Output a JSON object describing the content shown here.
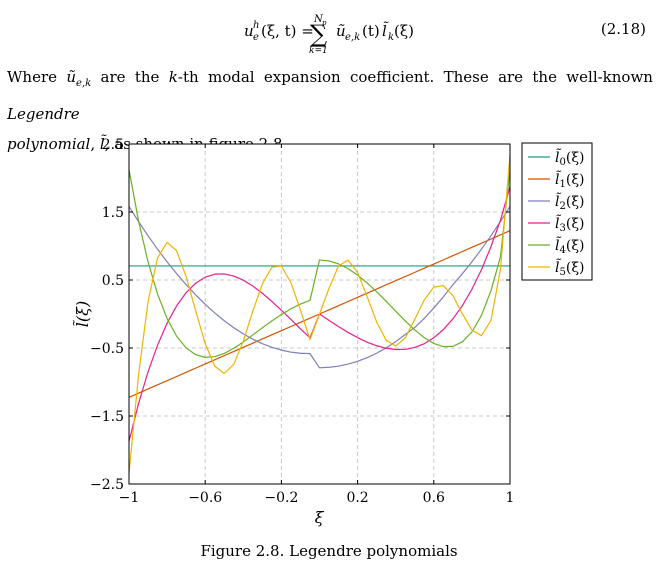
{
  "equation": {
    "lhs": "u",
    "lhs_sup": "h",
    "lhs_sub": "e",
    "lhs_args": "(ξ, t) =",
    "sum_symbol": "∑",
    "sum_upper": "N",
    "sum_upper_sub": "p",
    "sum_lower": "k=1",
    "rhs_coef": "ũ",
    "rhs_coef_sub": "e,k",
    "rhs_coef_args": "(t)",
    "rhs_basis": "l̃",
    "rhs_basis_sub": "k",
    "rhs_basis_args": "(ξ)",
    "number": "(2.18)"
  },
  "paragraph": {
    "w1": "Where",
    "coef": "ũ",
    "coef_sub": "e,k",
    "w2": "are the",
    "k": "k",
    "w3": "-th modal expansion coefficient.  These are the well-known",
    "emph1": "Legendre",
    "emph2": "polynomial",
    "w4": ",",
    "sym": "l̃",
    "w5": ", as shown in figure 2.8."
  },
  "caption": "Figure 2.8. Legendre polynomials",
  "chart_data": {
    "type": "line",
    "xlabel": "ξ",
    "ylabel": "l̃(ξ)",
    "xlim": [
      -1,
      1
    ],
    "ylim": [
      -2.5,
      2.5
    ],
    "xticks": [
      -1,
      -0.6,
      -0.2,
      0.2,
      0.6,
      1
    ],
    "xtick_labels": [
      "−1",
      "−0.6",
      "−0.2",
      "0.2",
      "0.6",
      "1"
    ],
    "yticks": [
      -2.5,
      -1.5,
      -0.5,
      0.5,
      1.5,
      2.5
    ],
    "ytick_labels": [
      "−2.5",
      "−1.5",
      "−0.5",
      "0.5",
      "1.5",
      "2.5"
    ],
    "grid": true,
    "legend_position": "outside-right-top",
    "x": [
      -1,
      -0.95,
      -0.9,
      -0.85,
      -0.8,
      -0.75,
      -0.7,
      -0.65,
      -0.6,
      -0.55,
      -0.5,
      -0.45,
      -0.4,
      -0.35,
      -0.3,
      -0.25,
      -0.2,
      -0.15,
      -0.1,
      -0.05,
      0,
      0.05,
      0.1,
      0.15,
      0.2,
      0.25,
      0.3,
      0.35,
      0.4,
      0.45,
      0.5,
      0.55,
      0.6,
      0.65,
      0.7,
      0.75,
      0.8,
      0.85,
      0.9,
      0.95,
      1
    ],
    "series": [
      {
        "name_base": "l̃",
        "name_sub": "0",
        "name_args": "(ξ)",
        "color": "#16a085",
        "values": [
          0.707,
          0.707,
          0.707,
          0.707,
          0.707,
          0.707,
          0.707,
          0.707,
          0.707,
          0.707,
          0.707,
          0.707,
          0.707,
          0.707,
          0.707,
          0.707,
          0.707,
          0.707,
          0.707,
          0.707,
          0.707,
          0.707,
          0.707,
          0.707,
          0.707,
          0.707,
          0.707,
          0.707,
          0.707,
          0.707,
          0.707,
          0.707,
          0.707,
          0.707,
          0.707,
          0.707,
          0.707,
          0.707,
          0.707,
          0.707,
          0.707
        ]
      },
      {
        "name_base": "l̃",
        "name_sub": "1",
        "name_args": "(ξ)",
        "color": "#d35400",
        "values": [
          -1.225,
          -1.164,
          -1.102,
          -1.041,
          -0.98,
          -0.919,
          -0.857,
          -0.796,
          -0.735,
          -0.674,
          -0.612,
          -0.551,
          -0.49,
          -0.429,
          -0.367,
          -0.306,
          -0.245,
          -0.184,
          -0.122,
          -0.061,
          0.0,
          0.061,
          0.122,
          0.184,
          0.245,
          0.306,
          0.367,
          0.429,
          0.49,
          0.551,
          0.612,
          0.674,
          0.735,
          0.796,
          0.857,
          0.919,
          0.98,
          1.041,
          1.102,
          1.164,
          1.225
        ]
      },
      {
        "name_base": "l̃",
        "name_sub": "2",
        "name_args": "(ξ)",
        "color": "#7f7fba",
        "values": [
          1.581,
          1.36,
          1.15,
          0.953,
          0.767,
          0.593,
          0.431,
          0.281,
          0.142,
          0.016,
          -0.099,
          -0.202,
          -0.292,
          -0.371,
          -0.437,
          -0.49,
          -0.531,
          -0.561,
          -0.577,
          -0.583,
          -0.791,
          -0.783,
          -0.767,
          -0.736,
          -0.696,
          -0.643,
          -0.577,
          -0.498,
          -0.407,
          -0.302,
          -0.198,
          -0.065,
          0.089,
          0.251,
          0.431,
          0.593,
          0.767,
          0.953,
          1.15,
          1.36,
          1.581
        ]
      },
      {
        "name_base": "l̃",
        "name_sub": "3",
        "name_args": "(ξ)",
        "color": "#e91e8c",
        "values": [
          -1.871,
          -1.319,
          -0.85,
          -0.458,
          -0.136,
          0.12,
          0.314,
          0.453,
          0.542,
          0.586,
          0.589,
          0.558,
          0.497,
          0.411,
          0.305,
          0.184,
          0.054,
          -0.08,
          -0.217,
          -0.351,
          0.0,
          -0.094,
          -0.185,
          -0.271,
          -0.348,
          -0.414,
          -0.467,
          -0.504,
          -0.522,
          -0.519,
          -0.492,
          -0.436,
          -0.35,
          -0.23,
          -0.073,
          0.123,
          0.364,
          0.651,
          0.989,
          1.381,
          1.871
        ]
      },
      {
        "name_base": "l̃",
        "name_sub": "4",
        "name_args": "(ξ)",
        "color": "#6ab023",
        "values": [
          2.121,
          1.37,
          0.766,
          0.293,
          -0.067,
          -0.327,
          -0.499,
          -0.599,
          -0.638,
          -0.628,
          -0.58,
          -0.504,
          -0.411,
          -0.308,
          -0.203,
          -0.101,
          -0.007,
          0.076,
          0.146,
          0.201,
          0.795,
          0.78,
          0.737,
          0.667,
          0.572,
          0.457,
          0.327,
          0.186,
          0.041,
          -0.102,
          -0.234,
          -0.348,
          -0.433,
          -0.48,
          -0.476,
          -0.409,
          -0.263,
          -0.021,
          0.341,
          0.842,
          2.121
        ]
      },
      {
        "name_base": "l̃",
        "name_sub": "5",
        "name_args": "(ξ)",
        "color": "#f0b400",
        "values": [
          -2.345,
          -0.898,
          0.182,
          0.827,
          1.054,
          0.93,
          0.549,
          0.046,
          -0.436,
          -0.766,
          -0.875,
          -0.74,
          -0.4,
          0.041,
          0.443,
          0.688,
          0.704,
          0.46,
          0.058,
          -0.378,
          0.0,
          0.378,
          0.707,
          0.793,
          0.611,
          0.255,
          -0.118,
          -0.387,
          -0.472,
          -0.351,
          -0.078,
          0.208,
          0.395,
          0.418,
          0.27,
          0.002,
          -0.236,
          -0.319,
          -0.095,
          0.657,
          2.345
        ]
      }
    ]
  }
}
